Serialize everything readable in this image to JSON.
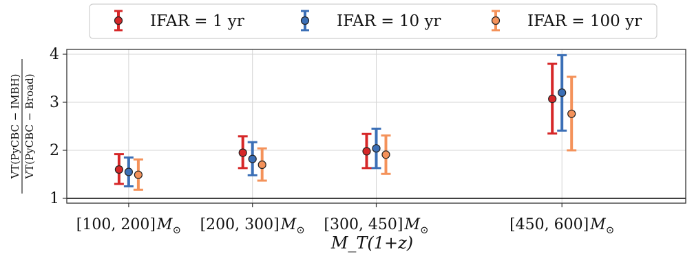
{
  "chart_data": {
    "type": "scatter",
    "title": "",
    "xlabel": "M_T(1+z)",
    "ylabel_numerator": "VT(PyCBC − IMBH)",
    "ylabel_denominator": "VT(PyCBC − Broad)",
    "ylim": [
      0.9,
      4.1
    ],
    "yticks": [
      1,
      2,
      3,
      4
    ],
    "grid": true,
    "legend_position": "top (outside, above plot)",
    "reference_line_y": 1,
    "categories": [
      {
        "range": "[100, 200]",
        "unit": "M",
        "sub": "⊙",
        "center": 150
      },
      {
        "range": "[200, 300]",
        "unit": "M",
        "sub": "⊙",
        "center": 250
      },
      {
        "range": "[300, 450]",
        "unit": "M",
        "sub": "⊙",
        "center": 350
      },
      {
        "range": "[450, 600]",
        "unit": "M",
        "sub": "⊙",
        "center": 500
      }
    ],
    "series": [
      {
        "name": "IFAR = 1 yr",
        "color": "#d62728",
        "values": [
          1.6,
          1.95,
          1.98,
          3.07
        ],
        "lower": [
          1.3,
          1.63,
          1.63,
          2.35
        ],
        "upper": [
          1.92,
          2.29,
          2.34,
          3.8
        ]
      },
      {
        "name": "IFAR = 10 yr",
        "color": "#3b6fb6",
        "values": [
          1.55,
          1.82,
          2.04,
          3.2
        ],
        "lower": [
          1.25,
          1.48,
          1.63,
          2.41
        ],
        "upper": [
          1.85,
          2.17,
          2.45,
          3.98
        ]
      },
      {
        "name": "IFAR = 100 yr",
        "color": "#f4925a",
        "values": [
          1.49,
          1.7,
          1.91,
          2.76
        ],
        "lower": [
          1.18,
          1.37,
          1.51,
          2.0
        ],
        "upper": [
          1.81,
          2.04,
          2.31,
          3.53
        ]
      }
    ]
  }
}
